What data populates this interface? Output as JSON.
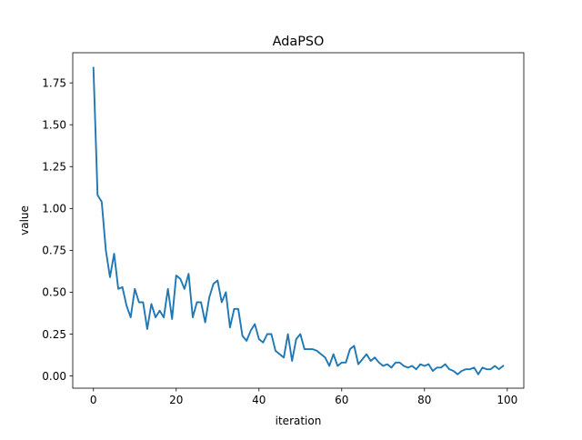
{
  "chart_data": {
    "type": "line",
    "title": "AdaPSO",
    "xlabel": "iteration",
    "ylabel": "value",
    "xlim": [
      -5,
      104
    ],
    "ylim": [
      -0.073,
      1.93
    ],
    "xticks": [
      0,
      20,
      40,
      60,
      80,
      100
    ],
    "xtick_labels": [
      "0",
      "20",
      "40",
      "60",
      "80",
      "100"
    ],
    "yticks": [
      0.0,
      0.25,
      0.5,
      0.75,
      1.0,
      1.25,
      1.5,
      1.75
    ],
    "ytick_labels": [
      "0.00",
      "0.25",
      "0.50",
      "0.75",
      "1.00",
      "1.25",
      "1.50",
      "1.75"
    ],
    "grid": false,
    "series": [
      {
        "color": "#1f77b4",
        "x": [
          0,
          1,
          2,
          3,
          4,
          5,
          6,
          7,
          8,
          9,
          10,
          11,
          12,
          13,
          14,
          15,
          16,
          17,
          18,
          19,
          20,
          21,
          22,
          23,
          24,
          25,
          26,
          27,
          28,
          29,
          30,
          31,
          32,
          33,
          34,
          35,
          36,
          37,
          38,
          39,
          40,
          41,
          42,
          43,
          44,
          45,
          46,
          47,
          48,
          49,
          50,
          51,
          52,
          53,
          54,
          55,
          56,
          57,
          58,
          59,
          60,
          61,
          62,
          63,
          64,
          65,
          66,
          67,
          68,
          69,
          70,
          71,
          72,
          73,
          74,
          75,
          76,
          77,
          78,
          79,
          80,
          81,
          82,
          83,
          84,
          85,
          86,
          87,
          88,
          89,
          90,
          91,
          92,
          93,
          94,
          95,
          96,
          97,
          98,
          99
        ],
        "y": [
          1.84,
          1.08,
          1.04,
          0.75,
          0.59,
          0.73,
          0.52,
          0.53,
          0.42,
          0.35,
          0.52,
          0.44,
          0.44,
          0.28,
          0.43,
          0.35,
          0.39,
          0.35,
          0.52,
          0.34,
          0.6,
          0.58,
          0.52,
          0.61,
          0.35,
          0.44,
          0.44,
          0.32,
          0.47,
          0.55,
          0.57,
          0.44,
          0.5,
          0.29,
          0.4,
          0.4,
          0.24,
          0.21,
          0.27,
          0.31,
          0.22,
          0.2,
          0.25,
          0.25,
          0.15,
          0.13,
          0.11,
          0.25,
          0.09,
          0.22,
          0.25,
          0.16,
          0.16,
          0.16,
          0.15,
          0.13,
          0.11,
          0.06,
          0.13,
          0.06,
          0.08,
          0.08,
          0.16,
          0.18,
          0.07,
          0.1,
          0.13,
          0.09,
          0.11,
          0.08,
          0.06,
          0.07,
          0.05,
          0.08,
          0.08,
          0.06,
          0.05,
          0.06,
          0.04,
          0.07,
          0.06,
          0.07,
          0.03,
          0.05,
          0.05,
          0.07,
          0.04,
          0.03,
          0.01,
          0.03,
          0.04,
          0.04,
          0.05,
          0.01,
          0.05,
          0.04,
          0.04,
          0.06,
          0.04,
          0.06
        ]
      }
    ]
  }
}
